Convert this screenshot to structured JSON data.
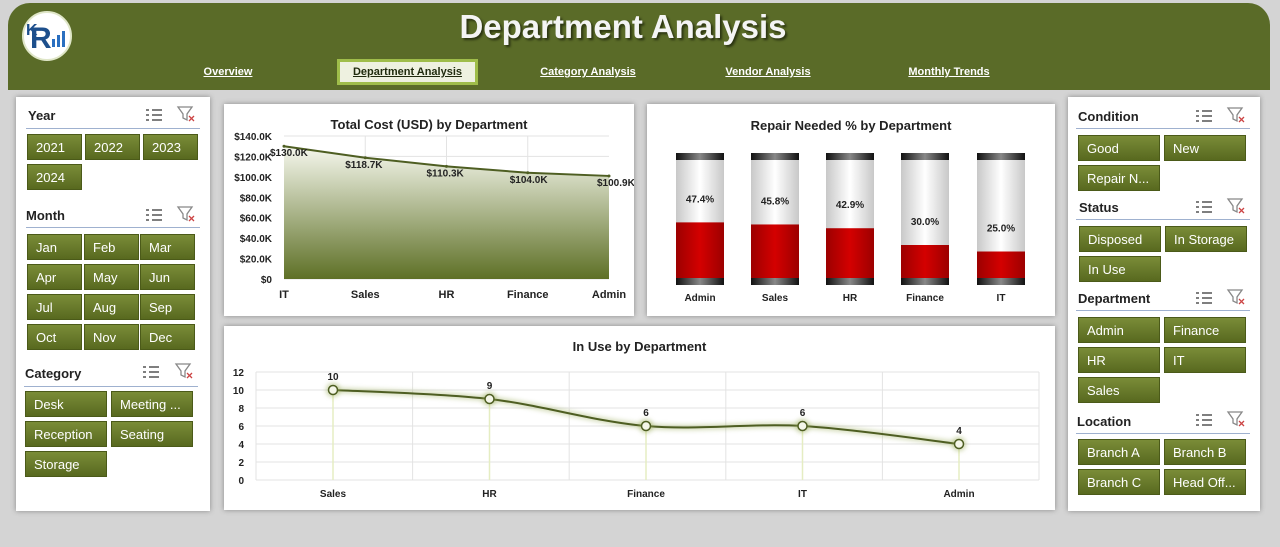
{
  "header": {
    "title": "Department Analysis",
    "tabs": [
      {
        "label": "Overview",
        "active": false
      },
      {
        "label": "Department Analysis",
        "active": true
      },
      {
        "label": "Category Analysis",
        "active": false
      },
      {
        "label": "Vendor Analysis",
        "active": false
      },
      {
        "label": "Monthly Trends",
        "active": false
      }
    ]
  },
  "left_slicers": {
    "year": {
      "title": "Year",
      "items": [
        "2021",
        "2022",
        "2023",
        "2024"
      ]
    },
    "month": {
      "title": "Month",
      "items": [
        "Jan",
        "Feb",
        "Mar",
        "Apr",
        "May",
        "Jun",
        "Jul",
        "Aug",
        "Sep",
        "Oct",
        "Nov",
        "Dec"
      ]
    },
    "category": {
      "title": "Category",
      "items": [
        "Desk",
        "Meeting ...",
        "Reception",
        "Seating",
        "Storage"
      ]
    }
  },
  "right_slicers": {
    "condition": {
      "title": "Condition",
      "items": [
        "Good",
        "New",
        "Repair N..."
      ]
    },
    "status": {
      "title": "Status",
      "items": [
        "Disposed",
        "In Storage",
        "In Use"
      ]
    },
    "department": {
      "title": "Department",
      "items": [
        "Admin",
        "Finance",
        "HR",
        "IT",
        "Sales"
      ]
    },
    "location": {
      "title": "Location",
      "items": [
        "Branch A",
        "Branch B",
        "Branch C",
        "Head Off..."
      ]
    }
  },
  "colors": {
    "accent": "#5a6b28",
    "chip": "#6b7d2e",
    "repair_red": "#c00000",
    "line": "#4e5e22"
  },
  "chart_data": [
    {
      "type": "area",
      "title": "Total Cost (USD) by Department",
      "categories": [
        "IT",
        "Sales",
        "HR",
        "Finance",
        "Admin"
      ],
      "values": [
        130000,
        118700,
        110300,
        104000,
        100900
      ],
      "data_labels": [
        "$130.0K",
        "$118.7K",
        "$110.3K",
        "$104.0K",
        "$100.9K"
      ],
      "y_ticks": [
        "$0",
        "$20.0K",
        "$40.0K",
        "$60.0K",
        "$80.0K",
        "$100.0K",
        "$120.0K",
        "$140.0K"
      ],
      "ylim": [
        0,
        140000
      ]
    },
    {
      "type": "bar",
      "title": "Repair Needed % by Department",
      "categories": [
        "Admin",
        "Sales",
        "HR",
        "Finance",
        "IT"
      ],
      "values": [
        47.4,
        45.8,
        42.9,
        30.0,
        25.0
      ],
      "data_labels": [
        "47.4%",
        "45.8%",
        "42.9%",
        "30.0%",
        "25.0%"
      ],
      "ylim": [
        0,
        100
      ]
    },
    {
      "type": "line",
      "title": "In Use by Department",
      "categories": [
        "Sales",
        "HR",
        "Finance",
        "IT",
        "Admin"
      ],
      "values": [
        10,
        9,
        6,
        6,
        4
      ],
      "data_labels": [
        "10",
        "9",
        "6",
        "6",
        "4"
      ],
      "y_ticks": [
        "0",
        "2",
        "4",
        "6",
        "8",
        "10",
        "12"
      ],
      "ylim": [
        0,
        12
      ]
    }
  ]
}
